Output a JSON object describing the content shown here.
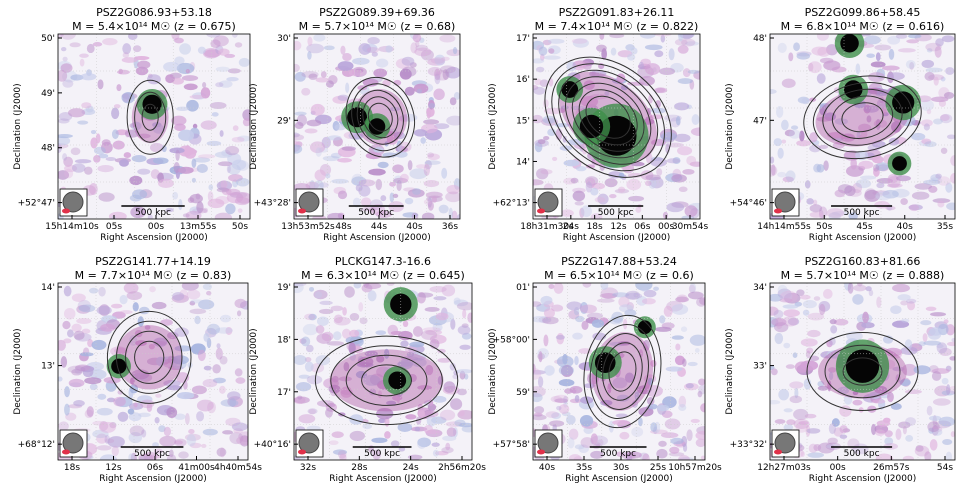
{
  "axes": {
    "ylabel": "Declination (J2000)",
    "xlabel": "Right Ascension (J2000)",
    "scalebar": "500 kpc"
  },
  "panels": [
    {
      "title": "PSZ2G086.93+53.18",
      "subtitle": "M = 5.4×10¹⁴ M☉ (z = 0.675)",
      "yticks": [
        "50'",
        "49'",
        "48'",
        "+52°47'"
      ],
      "xticks": [
        "15h14m10s",
        "05s",
        "00s",
        "13m55s",
        "50s"
      ]
    },
    {
      "title": "PSZ2G089.39+69.36",
      "subtitle": "M = 5.7×10¹⁴ M☉ (z = 0.68)",
      "yticks": [
        "30'",
        "29'",
        "+43°28'"
      ],
      "xticks": [
        "13h53m52s",
        "48s",
        "44s",
        "40s",
        "36s"
      ]
    },
    {
      "title": "PSZ2G091.83+26.11",
      "subtitle": "M = 7.4×10¹⁴ M☉ (z = 0.822)",
      "yticks": [
        "17'",
        "16'",
        "15'",
        "14'",
        "+62°13'"
      ],
      "xticks": [
        "18h31m30s",
        "24s",
        "18s",
        "12s",
        "06s",
        "00s",
        "30m54s"
      ]
    },
    {
      "title": "PSZ2G099.86+58.45",
      "subtitle": "M = 6.8×10¹⁴ M☉ (z = 0.616)",
      "yticks": [
        "48'",
        "47'",
        "+54°46'"
      ],
      "xticks": [
        "14h14m55s",
        "50s",
        "45s",
        "40s",
        "35s"
      ]
    },
    {
      "title": "PSZ2G141.77+14.19",
      "subtitle": "M = 7.7×10¹⁴ M☉ (z = 0.83)",
      "yticks": [
        "14'",
        "13'",
        "+68°12'"
      ],
      "xticks": [
        "18s",
        "12s",
        "06s",
        "41m00s",
        "4h40m54s"
      ]
    },
    {
      "title": "PLCKG147.3-16.6",
      "subtitle": "M = 6.3×10¹⁴ M☉ (z = 0.645)",
      "yticks": [
        "19'",
        "18'",
        "17'",
        "+40°16'"
      ],
      "xticks": [
        "32s",
        "28s",
        "24s",
        "2h56m20s"
      ]
    },
    {
      "title": "PSZ2G147.88+53.24",
      "subtitle": "M = 6.5×10¹⁴ M☉ (z = 0.6)",
      "yticks": [
        "01'",
        "+58°00'",
        "59'",
        "+57°58'"
      ],
      "xticks": [
        "40s",
        "35s",
        "30s",
        "25s",
        "10h57m20s"
      ]
    },
    {
      "title": "PSZ2G160.83+81.66",
      "subtitle": "M = 5.7×10¹⁴ M☉ (z = 0.888)",
      "yticks": [
        "34'",
        "33'",
        "+33°32'"
      ],
      "xticks": [
        "12h27m03s",
        "00s",
        "26m57s",
        "54s"
      ]
    }
  ]
}
